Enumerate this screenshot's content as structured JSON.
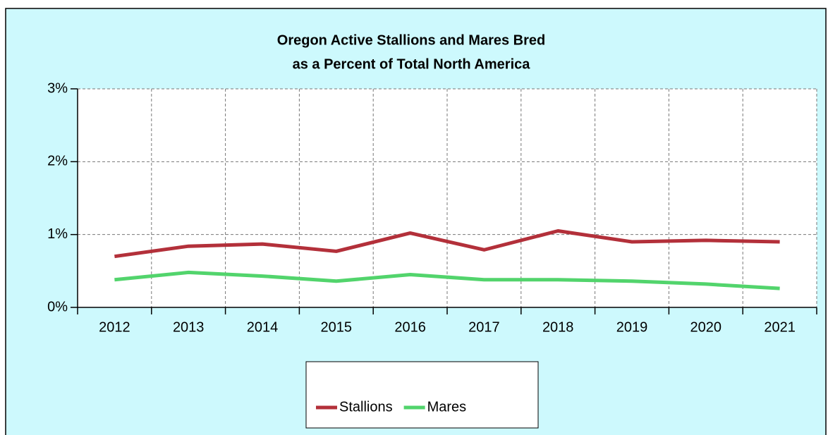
{
  "chart_data": {
    "type": "line",
    "title": [
      "Oregon Active Stallions and Mares Bred",
      "as a Percent of Total North America"
    ],
    "categories": [
      "2012",
      "2013",
      "2014",
      "2015",
      "2016",
      "2017",
      "2018",
      "2019",
      "2020",
      "2021"
    ],
    "series": [
      {
        "name": "Stallions",
        "color": "#b3303a",
        "values": [
          0.7,
          0.84,
          0.87,
          0.77,
          1.02,
          0.79,
          1.05,
          0.9,
          0.92,
          0.9
        ]
      },
      {
        "name": "Mares",
        "color": "#52d46c",
        "values": [
          0.38,
          0.48,
          0.43,
          0.36,
          0.45,
          0.38,
          0.38,
          0.36,
          0.32,
          0.26
        ]
      }
    ],
    "ylim": [
      0,
      3
    ],
    "yticks": [
      {
        "value": 0,
        "label": "0%"
      },
      {
        "value": 1,
        "label": "1%"
      },
      {
        "value": 2,
        "label": "2%"
      },
      {
        "value": 3,
        "label": "3%"
      }
    ],
    "grid": true,
    "legend": "bottom"
  }
}
